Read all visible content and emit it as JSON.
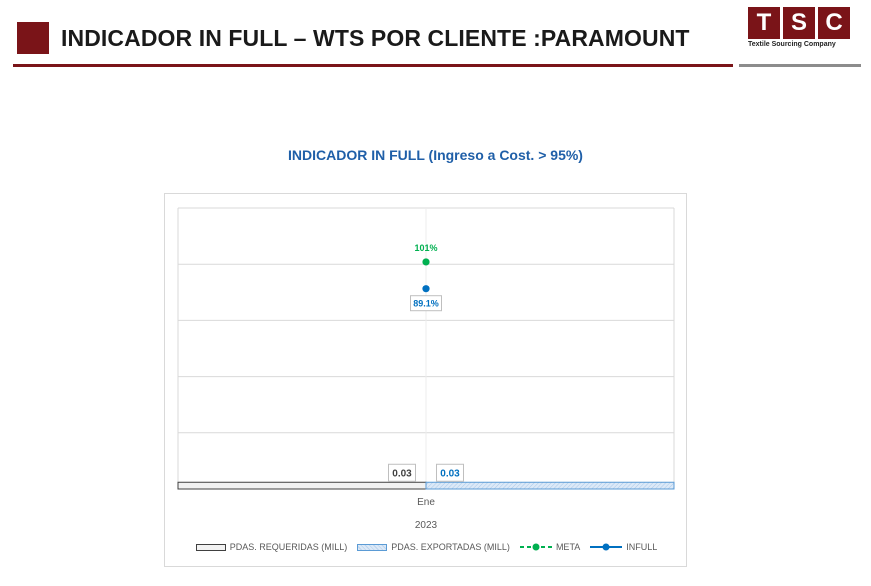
{
  "header": {
    "title": "INDICADOR IN FULL – WTS POR CLIENTE :PARAMOUNT",
    "logo_letters": [
      "T",
      "S",
      "C"
    ],
    "logo_tagline": "Textile Sourcing Company"
  },
  "colors": {
    "brand": "#7a1418",
    "title_blue": "#1f5fa8",
    "meta": "#00b050",
    "infull": "#0070c0",
    "exportadas": "#5b9bd5",
    "requeridas": "#404040"
  },
  "chart_data": {
    "type": "bar",
    "title": "INDICADOR IN FULL (Ingreso a Cost. > 95%)",
    "categories": [
      "Ene"
    ],
    "category_group": "2023",
    "series": [
      {
        "name": "PDAS. REQUERIDAS (MILL)",
        "kind": "bar",
        "values": [
          0.03
        ],
        "labels": [
          "0.03"
        ]
      },
      {
        "name": "PDAS. EXPORTADAS (MILL)",
        "kind": "bar",
        "values": [
          0.03
        ],
        "labels": [
          "0.03"
        ]
      },
      {
        "name": "META",
        "kind": "line",
        "values": [
          1.01
        ],
        "labels": [
          "101%"
        ]
      },
      {
        "name": "INFULL",
        "kind": "line",
        "values": [
          0.891
        ],
        "labels": [
          "89.1%"
        ]
      }
    ],
    "ylim": [
      0,
      1.25
    ],
    "grid": true,
    "legend_position": "bottom"
  }
}
